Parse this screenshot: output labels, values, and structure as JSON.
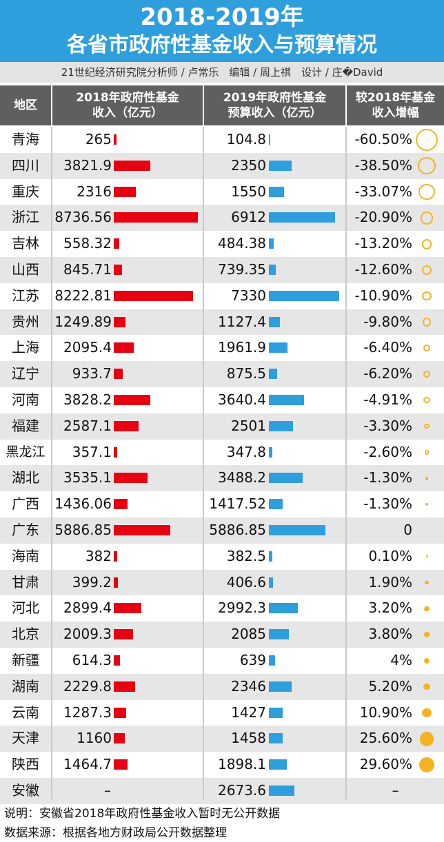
{
  "title": {
    "line1": "2018-2019年",
    "line2": "各省市政府性基金收入与预算情况"
  },
  "credit": "21世纪经济研究院分析师 / 卢常乐　编辑 / 周上祺　设计 / 庄�David",
  "headers": {
    "region": "地区",
    "col2018": "2018年政府性基金\n收入（亿元）",
    "col2019": "2019年政府性基金\n预算收入（亿元）",
    "change": "较2018年基金\n收入增幅"
  },
  "colors": {
    "title_bg": "#2e9fdc",
    "bar_2018": "#e60012",
    "bar_2019": "#2e9fdc",
    "circle": "#f5b324"
  },
  "chart_data": {
    "type": "table",
    "columns": [
      "地区",
      "2018年政府性基金收入（亿元）",
      "2019年政府性基金预算收入（亿元）",
      "较2018年基金收入增幅"
    ],
    "rows": [
      {
        "region": "青海",
        "v2018": 265,
        "v2018_text": "265",
        "v2019": 104.8,
        "v2019_text": "104.8",
        "change": -60.5,
        "change_text": "-60.50%"
      },
      {
        "region": "四川",
        "v2018": 3821.9,
        "v2018_text": "3821.9",
        "v2019": 2350,
        "v2019_text": "2350",
        "change": -38.5,
        "change_text": "-38.50%"
      },
      {
        "region": "重庆",
        "v2018": 2316,
        "v2018_text": "2316",
        "v2019": 1550,
        "v2019_text": "1550",
        "change": -33.07,
        "change_text": "-33.07%"
      },
      {
        "region": "浙江",
        "v2018": 8736.56,
        "v2018_text": "8736.56",
        "v2019": 6912,
        "v2019_text": "6912",
        "change": -20.9,
        "change_text": "-20.90%"
      },
      {
        "region": "吉林",
        "v2018": 558.32,
        "v2018_text": "558.32",
        "v2019": 484.38,
        "v2019_text": "484.38",
        "change": -13.2,
        "change_text": "-13.20%"
      },
      {
        "region": "山西",
        "v2018": 845.71,
        "v2018_text": "845.71",
        "v2019": 739.35,
        "v2019_text": "739.35",
        "change": -12.6,
        "change_text": "-12.60%"
      },
      {
        "region": "江苏",
        "v2018": 8222.81,
        "v2018_text": "8222.81",
        "v2019": 7330,
        "v2019_text": "7330",
        "change": -10.9,
        "change_text": "-10.90%"
      },
      {
        "region": "贵州",
        "v2018": 1249.89,
        "v2018_text": "1249.89",
        "v2019": 1127.4,
        "v2019_text": "1127.4",
        "change": -9.8,
        "change_text": "-9.80%"
      },
      {
        "region": "上海",
        "v2018": 2095.4,
        "v2018_text": "2095.4",
        "v2019": 1961.9,
        "v2019_text": "1961.9",
        "change": -6.4,
        "change_text": "-6.40%"
      },
      {
        "region": "辽宁",
        "v2018": 933.7,
        "v2018_text": "933.7",
        "v2019": 875.5,
        "v2019_text": "875.5",
        "change": -6.2,
        "change_text": "-6.20%"
      },
      {
        "region": "河南",
        "v2018": 3828.2,
        "v2018_text": "3828.2",
        "v2019": 3640.4,
        "v2019_text": "3640.4",
        "change": -4.91,
        "change_text": "-4.91%"
      },
      {
        "region": "福建",
        "v2018": 2587.1,
        "v2018_text": "2587.1",
        "v2019": 2501,
        "v2019_text": "2501",
        "change": -3.3,
        "change_text": "-3.30%"
      },
      {
        "region": "黑龙江",
        "v2018": 357.1,
        "v2018_text": "357.1",
        "v2019": 347.8,
        "v2019_text": "347.8",
        "change": -2.6,
        "change_text": "-2.60%"
      },
      {
        "region": "湖北",
        "v2018": 3535.1,
        "v2018_text": "3535.1",
        "v2019": 3488.2,
        "v2019_text": "3488.2",
        "change": -1.3,
        "change_text": "-1.30%"
      },
      {
        "region": "广西",
        "v2018": 1436.06,
        "v2018_text": "1436.06",
        "v2019": 1417.52,
        "v2019_text": "1417.52",
        "change": -1.3,
        "change_text": "-1.30%"
      },
      {
        "region": "广东",
        "v2018": 5886.85,
        "v2018_text": "5886.85",
        "v2019": 5886.85,
        "v2019_text": "5886.85",
        "change": 0,
        "change_text": "0"
      },
      {
        "region": "海南",
        "v2018": 382,
        "v2018_text": "382",
        "v2019": 382.5,
        "v2019_text": "382.5",
        "change": 0.1,
        "change_text": "0.10%"
      },
      {
        "region": "甘肃",
        "v2018": 399.2,
        "v2018_text": "399.2",
        "v2019": 406.6,
        "v2019_text": "406.6",
        "change": 1.9,
        "change_text": "1.90%"
      },
      {
        "region": "河北",
        "v2018": 2899.4,
        "v2018_text": "2899.4",
        "v2019": 2992.3,
        "v2019_text": "2992.3",
        "change": 3.2,
        "change_text": "3.20%"
      },
      {
        "region": "北京",
        "v2018": 2009.3,
        "v2018_text": "2009.3",
        "v2019": 2085,
        "v2019_text": "2085",
        "change": 3.8,
        "change_text": "3.80%"
      },
      {
        "region": "新疆",
        "v2018": 614.3,
        "v2018_text": "614.3",
        "v2019": 639,
        "v2019_text": "639",
        "change": 4,
        "change_text": "4%"
      },
      {
        "region": "湖南",
        "v2018": 2229.8,
        "v2018_text": "2229.8",
        "v2019": 2346,
        "v2019_text": "2346",
        "change": 5.2,
        "change_text": "5.20%"
      },
      {
        "region": "云南",
        "v2018": 1287.3,
        "v2018_text": "1287.3",
        "v2019": 1427,
        "v2019_text": "1427",
        "change": 10.9,
        "change_text": "10.90%"
      },
      {
        "region": "天津",
        "v2018": 1160,
        "v2018_text": "1160",
        "v2019": 1458,
        "v2019_text": "1458",
        "change": 25.6,
        "change_text": "25.60%"
      },
      {
        "region": "陕西",
        "v2018": 1464.7,
        "v2018_text": "1464.7",
        "v2019": 1898.1,
        "v2019_text": "1898.1",
        "change": 29.6,
        "change_text": "29.60%"
      },
      {
        "region": "安徽",
        "v2018": null,
        "v2018_text": "–",
        "v2019": 2673.6,
        "v2019_text": "2673.6",
        "change": null,
        "change_text": "–"
      }
    ]
  },
  "footer": {
    "note": "说明：安徽省2018年政府性基金收入暂时无公开数据",
    "source": "数据来源：根据各地方财政局公开数据整理"
  }
}
